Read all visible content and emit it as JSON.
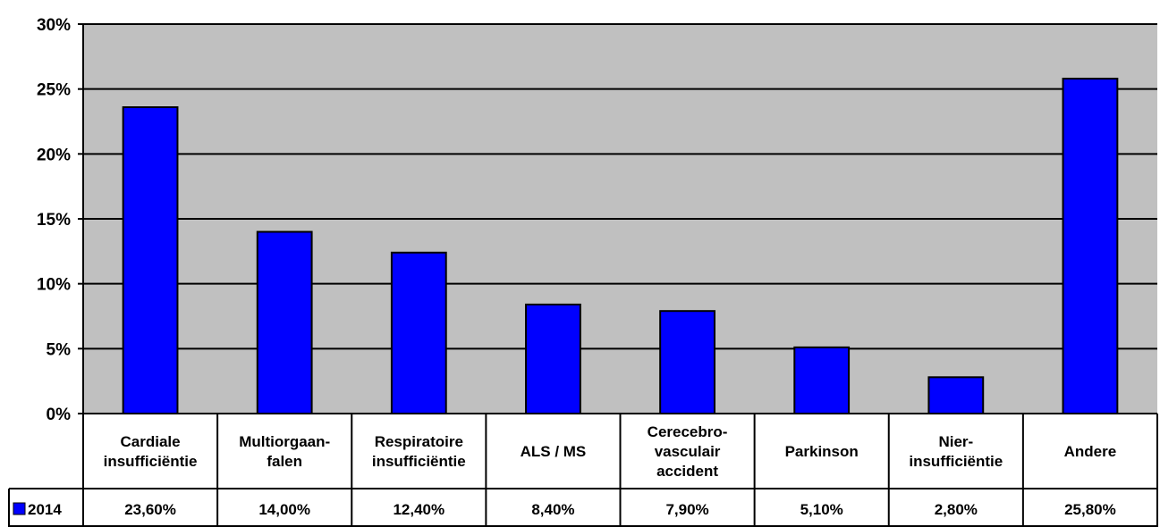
{
  "chart_data": {
    "type": "bar",
    "categories": [
      [
        "Cardiale",
        "insufficiëntie"
      ],
      [
        "Multiorgaan-",
        "falen"
      ],
      [
        "Respiratoire",
        "insufficiëntie"
      ],
      [
        "ALS / MS"
      ],
      [
        "Cerecebro-",
        "vasculair",
        "accident"
      ],
      [
        "Parkinson"
      ],
      [
        "Nier-",
        "insufficiëntie"
      ],
      [
        "Andere"
      ]
    ],
    "series": [
      {
        "name": "2014",
        "values": [
          23.6,
          14.0,
          12.4,
          8.4,
          7.9,
          5.1,
          2.8,
          25.8
        ],
        "value_labels": [
          "23,60%",
          "14,00%",
          "12,40%",
          "8,40%",
          "7,90%",
          "5,10%",
          "2,80%",
          "25,80%"
        ],
        "color": "#0000FF"
      }
    ],
    "ylim": [
      0,
      30
    ],
    "yticks": [
      0,
      5,
      10,
      15,
      20,
      25,
      30
    ],
    "ytick_labels": [
      "0%",
      "5%",
      "10%",
      "15%",
      "20%",
      "25%",
      "30%"
    ],
    "grid": true,
    "plot_background": "#C0C0C0",
    "legend": "data-table",
    "title": "",
    "xlabel": "",
    "ylabel": ""
  }
}
